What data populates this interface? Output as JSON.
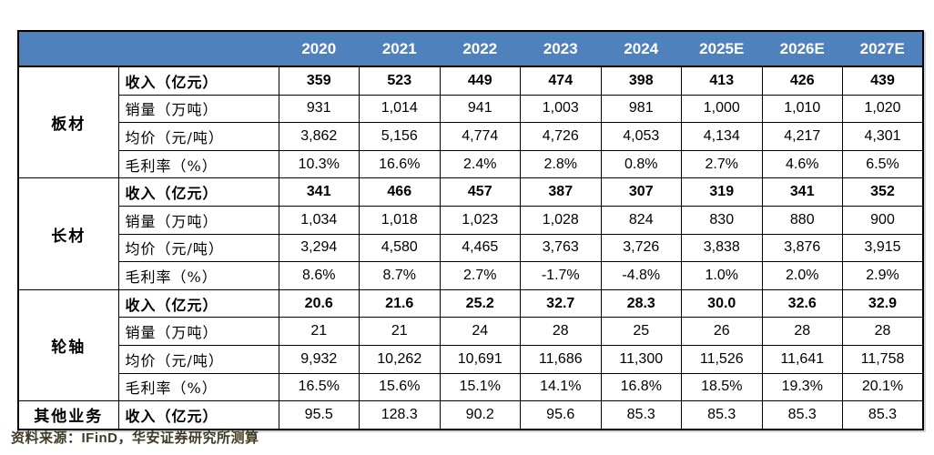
{
  "table": {
    "header_years": [
      "2020",
      "2021",
      "2022",
      "2023",
      "2024",
      "2025E",
      "2026E",
      "2027E"
    ],
    "segments": [
      {
        "name": "板材",
        "rows": [
          {
            "metric": "收入（亿元）",
            "metric_bold": true,
            "values_bold": true,
            "values": [
              "359",
              "523",
              "449",
              "474",
              "398",
              "413",
              "426",
              "439"
            ]
          },
          {
            "metric": "销量（万吨）",
            "metric_bold": false,
            "values_bold": false,
            "values": [
              "931",
              "1,014",
              "941",
              "1,003",
              "981",
              "1,000",
              "1,010",
              "1,020"
            ]
          },
          {
            "metric": "均价（元/吨）",
            "metric_bold": false,
            "values_bold": false,
            "values": [
              "3,862",
              "5,156",
              "4,774",
              "4,726",
              "4,053",
              "4,134",
              "4,217",
              "4,301"
            ]
          },
          {
            "metric": "毛利率（%）",
            "metric_bold": false,
            "values_bold": false,
            "values": [
              "10.3%",
              "16.6%",
              "2.4%",
              "2.8%",
              "0.8%",
              "2.7%",
              "4.6%",
              "6.5%"
            ]
          }
        ]
      },
      {
        "name": "长材",
        "rows": [
          {
            "metric": "收入（亿元）",
            "metric_bold": true,
            "values_bold": true,
            "values": [
              "341",
              "466",
              "457",
              "387",
              "307",
              "319",
              "341",
              "352"
            ]
          },
          {
            "metric": "销量（万吨）",
            "metric_bold": false,
            "values_bold": false,
            "values": [
              "1,034",
              "1,018",
              "1,023",
              "1,028",
              "824",
              "830",
              "880",
              "900"
            ]
          },
          {
            "metric": "均价（元/吨）",
            "metric_bold": false,
            "values_bold": false,
            "values": [
              "3,294",
              "4,580",
              "4,465",
              "3,763",
              "3,726",
              "3,838",
              "3,876",
              "3,915"
            ]
          },
          {
            "metric": "毛利率（%）",
            "metric_bold": false,
            "values_bold": false,
            "values": [
              "8.6%",
              "8.7%",
              "2.7%",
              "-1.7%",
              "-4.8%",
              "1.0%",
              "2.0%",
              "2.9%"
            ]
          }
        ]
      },
      {
        "name": "轮轴",
        "rows": [
          {
            "metric": "收入（亿元）",
            "metric_bold": true,
            "values_bold": true,
            "values": [
              "20.6",
              "21.6",
              "25.2",
              "32.7",
              "28.3",
              "30.0",
              "32.6",
              "32.9"
            ]
          },
          {
            "metric": "销量（万吨）",
            "metric_bold": false,
            "values_bold": false,
            "values": [
              "21",
              "21",
              "24",
              "28",
              "25",
              "26",
              "28",
              "28"
            ]
          },
          {
            "metric": "均价（元/吨）",
            "metric_bold": false,
            "values_bold": false,
            "values": [
              "9,932",
              "10,262",
              "10,691",
              "11,686",
              "11,300",
              "11,526",
              "11,641",
              "11,758"
            ]
          },
          {
            "metric": "毛利率（%）",
            "metric_bold": false,
            "values_bold": false,
            "values": [
              "16.5%",
              "15.6%",
              "15.1%",
              "14.1%",
              "16.8%",
              "18.5%",
              "19.3%",
              "20.1%"
            ]
          }
        ]
      },
      {
        "name": "其他业务",
        "rows": [
          {
            "metric": "收入（亿元）",
            "metric_bold": true,
            "values_bold": false,
            "values": [
              "95.5",
              "128.3",
              "90.2",
              "95.6",
              "85.3",
              "85.3",
              "85.3",
              "85.3"
            ]
          }
        ]
      }
    ]
  },
  "footer": {
    "prefix": "资料来源：",
    "source": "IFinD，",
    "rest": "华安证券研究所测算"
  },
  "colors": {
    "header_bg": "#4F81BD",
    "header_text": "#FFFFFF",
    "border": "#000000",
    "footer_text": "#3F3A22"
  }
}
